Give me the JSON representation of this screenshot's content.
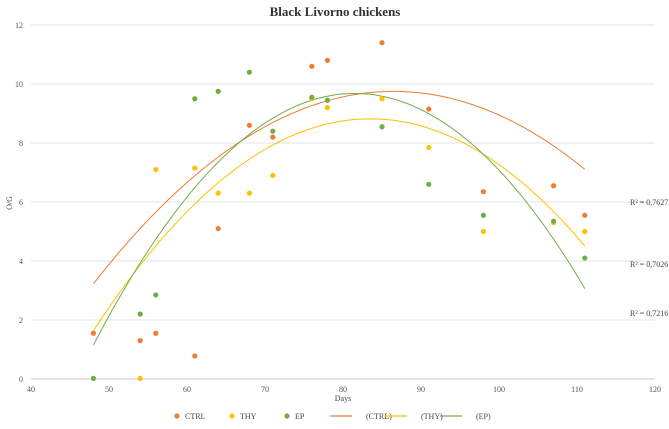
{
  "chart_data": {
    "type": "scatter",
    "title": "Black Livorno chickens",
    "xlabel": "Days",
    "ylabel": "O/G",
    "xlim": [
      40,
      120
    ],
    "ylim": [
      0,
      12
    ],
    "xticks": [
      "40",
      "50",
      "60",
      "70",
      "80",
      "90",
      "100",
      "110",
      "120"
    ],
    "yticks": [
      "0",
      "2",
      "4",
      "6",
      "8",
      "10",
      "12"
    ],
    "grid": "horizontal",
    "legend_position": "bottom",
    "colors": {
      "CTRL": "#ED7D31",
      "THY": "#FFC000",
      "EP": "#70AD47"
    },
    "series": [
      {
        "name": "CTRL",
        "color": "#ED7D31",
        "points": [
          [
            48,
            1.55
          ],
          [
            54,
            1.3
          ],
          [
            56,
            1.55
          ],
          [
            61,
            0.78
          ],
          [
            64,
            5.1
          ],
          [
            68,
            8.6
          ],
          [
            71,
            8.2
          ],
          [
            76,
            10.6
          ],
          [
            78,
            10.8
          ],
          [
            85,
            11.4
          ],
          [
            91,
            9.15
          ],
          [
            98,
            6.35
          ],
          [
            107,
            6.55
          ],
          [
            111,
            5.55
          ]
        ]
      },
      {
        "name": "THY",
        "color": "#FFC000",
        "points": [
          [
            54,
            0.02
          ],
          [
            56,
            7.1
          ],
          [
            61,
            7.15
          ],
          [
            64,
            6.3
          ],
          [
            68,
            6.3
          ],
          [
            71,
            6.9
          ],
          [
            76,
            9.5
          ],
          [
            78,
            9.2
          ],
          [
            85,
            9.5
          ],
          [
            91,
            7.85
          ],
          [
            98,
            5.0
          ],
          [
            107,
            5.3
          ],
          [
            111,
            5.0
          ]
        ]
      },
      {
        "name": "EP",
        "color": "#70AD47",
        "points": [
          [
            48,
            0.02
          ],
          [
            54,
            2.2
          ],
          [
            56,
            2.85
          ],
          [
            61,
            9.5
          ],
          [
            64,
            9.75
          ],
          [
            68,
            10.4
          ],
          [
            71,
            8.4
          ],
          [
            76,
            9.55
          ],
          [
            78,
            9.45
          ],
          [
            85,
            8.55
          ],
          [
            91,
            6.6
          ],
          [
            98,
            5.55
          ],
          [
            107,
            5.35
          ],
          [
            111,
            4.1
          ]
        ]
      }
    ],
    "trendlines": [
      {
        "name": "(CTRL)",
        "color": "#ED7D31",
        "x_range": [
          48,
          111
        ],
        "vertex_x": 86.5,
        "vertex_y": 9.75,
        "a": -0.0044,
        "r2": "R² = 0,7627"
      },
      {
        "name": "(THY)",
        "color": "#FFC000",
        "x_range": [
          48,
          111
        ],
        "vertex_x": 83.5,
        "vertex_y": 8.82,
        "a": -0.0057,
        "r2": "R² = 0,7026"
      },
      {
        "name": "(EP)",
        "color": "#70AD47",
        "x_range": [
          48,
          111
        ],
        "vertex_x": 81.5,
        "vertex_y": 9.68,
        "a": -0.0076,
        "r2": "R² = 0,7216"
      }
    ],
    "legend": [
      "CTRL",
      "THY",
      "EP",
      "(CTRL)",
      "(THY)",
      "(EP)"
    ]
  }
}
